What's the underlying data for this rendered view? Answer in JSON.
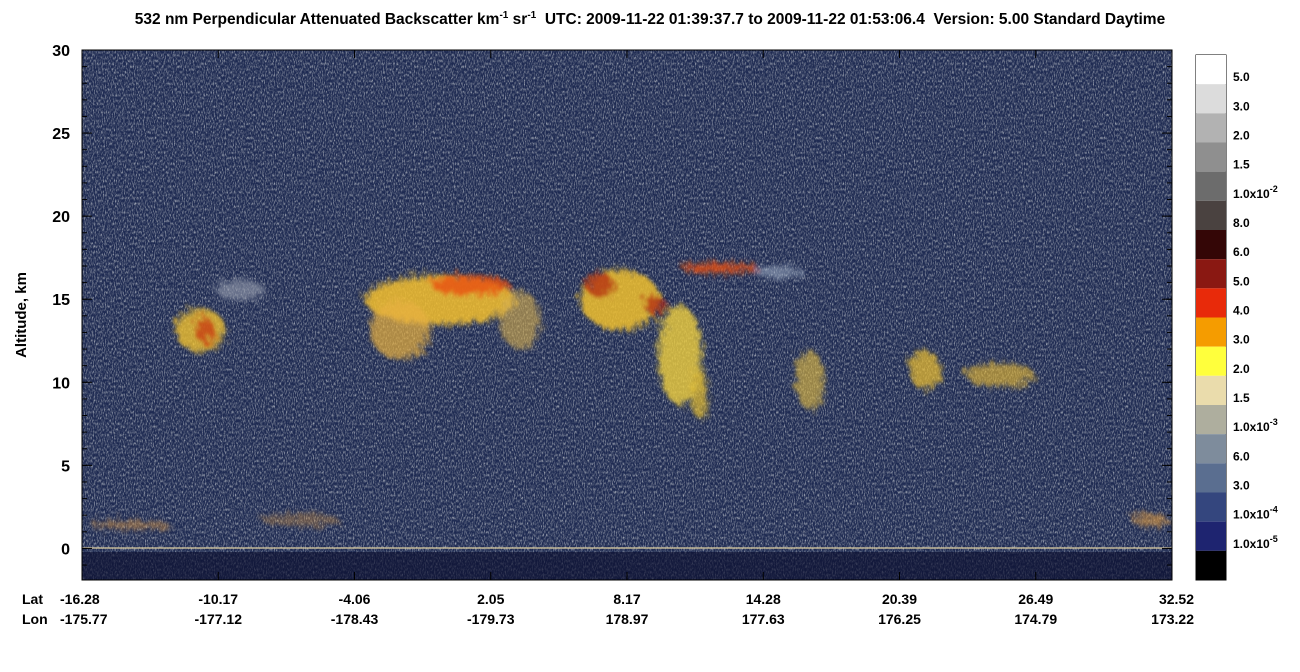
{
  "chart_data": {
    "type": "curtain",
    "title": {
      "main": "532 nm Perpendicular Attenuated Backscatter km",
      "sup1": "-1",
      "mid": " sr",
      "sup2": "-1",
      "rest": "  UTC: 2009-11-22 01:39:37.7 to 2009-11-22 01:53:06.4  Version: 5.00 Standard Daytime"
    },
    "y_label": "Altitude, km",
    "ylim": [
      -1.9,
      30
    ],
    "yticks": [
      0,
      5,
      10,
      15,
      20,
      25,
      30
    ],
    "x_row_labels": [
      "Lat",
      "Lon"
    ],
    "lat": [
      "-16.28",
      "-10.17",
      "-4.06",
      "2.05",
      "8.17",
      "14.28",
      "20.39",
      "26.49",
      "32.52"
    ],
    "lon": [
      "-175.77",
      "-177.12",
      "-178.43",
      "-179.73",
      "178.97",
      "177.63",
      "176.25",
      "174.79",
      "173.22"
    ],
    "colorbar": {
      "colors": [
        "#ffffff",
        "#dcdcdc",
        "#b2b2b2",
        "#8f8f8f",
        "#6c6c6c",
        "#4a4240",
        "#340606",
        "#8a1812",
        "#e82a0a",
        "#f59c00",
        "#ffff3c",
        "#eadcac",
        "#aeae9e",
        "#7e8c9c",
        "#5a6e90",
        "#34467e",
        "#1e2470",
        "#000000"
      ],
      "labels": [
        {
          "text": "5.0"
        },
        {
          "text": "3.0"
        },
        {
          "text": "2.0"
        },
        {
          "text": "1.5"
        },
        {
          "text": "1.0x10",
          "exp": "-2"
        },
        {
          "text": "8.0"
        },
        {
          "text": "6.0"
        },
        {
          "text": "5.0"
        },
        {
          "text": "4.0"
        },
        {
          "text": "3.0"
        },
        {
          "text": "2.0"
        },
        {
          "text": "1.5"
        },
        {
          "text": "1.0x10",
          "exp": "-3"
        },
        {
          "text": "6.0"
        },
        {
          "text": "3.0"
        },
        {
          "text": "1.0x10",
          "exp": "-4"
        },
        {
          "text": "1.0x10",
          "exp": "-5"
        }
      ]
    }
  }
}
